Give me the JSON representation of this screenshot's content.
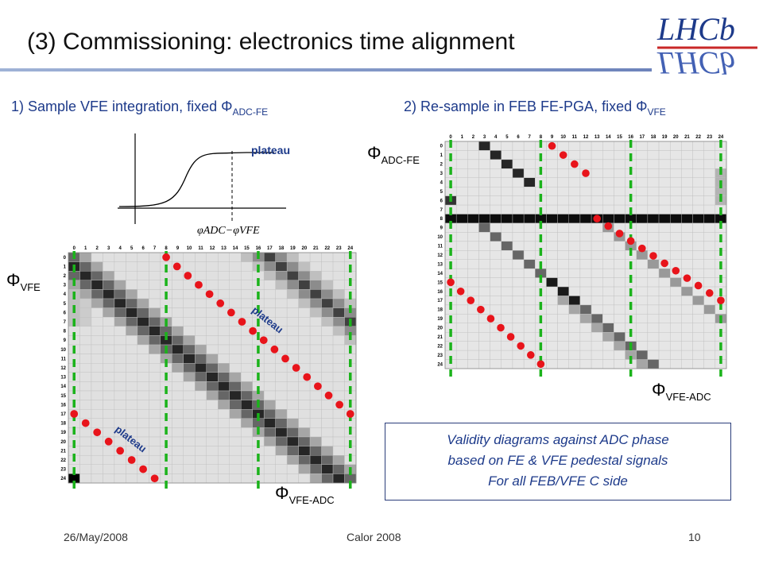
{
  "slide": {
    "title": "(3) Commissioning: electronics time alignment",
    "logo_text": "LHCb",
    "logo_text_mirror": "LHCb",
    "step1_label": "1) Sample VFE integration, fixed Φ",
    "step1_sub": "ADC-FE",
    "step2_label": "2) Re-sample in FEB FE-PGA, fixed Φ",
    "step2_sub": "VFE",
    "note_lines": [
      "Validity diagrams against ADC phase",
      "based on FE & VFE pedestal signals",
      "For all FEB/VFE C side"
    ],
    "footer_date": "26/May/2008",
    "footer_center": "Calor 2008",
    "page_number": "10"
  },
  "sketch": {
    "plateau_label": "plateau",
    "xaxis_label": "φADC−φVFE"
  },
  "left_panel": {
    "phi_symbol": "Φ",
    "y_label_sub": "VFE",
    "x_label_sub": "VFE-ADC",
    "plateau_label": "plateau"
  },
  "right_panel": {
    "phi_symbol": "Φ",
    "y_label_sub": "ADC-FE",
    "x_label_sub": "VFE-ADC"
  },
  "colors": {
    "red_dots": "#e8141b",
    "green_dash": "#1bb31b",
    "accent_text": "#1d3a8a"
  },
  "chart_data": [
    {
      "type": "heatmap",
      "x_ticks": [
        "0",
        "1",
        "2",
        "3",
        "4",
        "5",
        "6",
        "7",
        "8",
        "9",
        "10",
        "11",
        "12",
        "13",
        "14",
        "15",
        "16",
        "17",
        "18",
        "19",
        "20",
        "21",
        "22",
        "23",
        "24"
      ],
      "y_ticks": [
        "0",
        "1",
        "2",
        "3",
        "4",
        "5",
        "6",
        "7",
        "8",
        "9",
        "10",
        "11",
        "12",
        "13",
        "14",
        "15",
        "16",
        "17",
        "18",
        "19",
        "20",
        "21",
        "22",
        "23",
        "24"
      ],
      "green_lines_at": [
        0,
        8,
        16,
        24
      ],
      "red_diagonals": [
        {
          "from": [
            8,
            0
          ],
          "to": [
            24,
            17
          ]
        },
        {
          "from": [
            0,
            17
          ],
          "to": [
            7,
            24
          ]
        }
      ],
      "plateau_annotations": 2
    },
    {
      "type": "heatmap",
      "x_ticks": [
        "0",
        "1",
        "2",
        "3",
        "4",
        "5",
        "6",
        "7",
        "8",
        "9",
        "10",
        "11",
        "12",
        "13",
        "14",
        "15",
        "16",
        "17",
        "18",
        "19",
        "20",
        "21",
        "22",
        "23",
        "24"
      ],
      "y_ticks": [
        "0",
        "1",
        "2",
        "3",
        "4",
        "5",
        "6",
        "7",
        "8",
        "9",
        "10",
        "11",
        "12",
        "13",
        "14",
        "15",
        "16",
        "17",
        "18",
        "19",
        "20",
        "21",
        "22",
        "23",
        "24"
      ],
      "green_lines_at": [
        0,
        8,
        16,
        24
      ],
      "black_row": 8,
      "red_diagonals": [
        {
          "from": [
            9,
            0
          ],
          "to": [
            12,
            3
          ]
        },
        {
          "from": [
            13,
            8
          ],
          "to": [
            24,
            17
          ]
        },
        {
          "from": [
            0,
            15
          ],
          "to": [
            8,
            24
          ]
        }
      ]
    }
  ]
}
